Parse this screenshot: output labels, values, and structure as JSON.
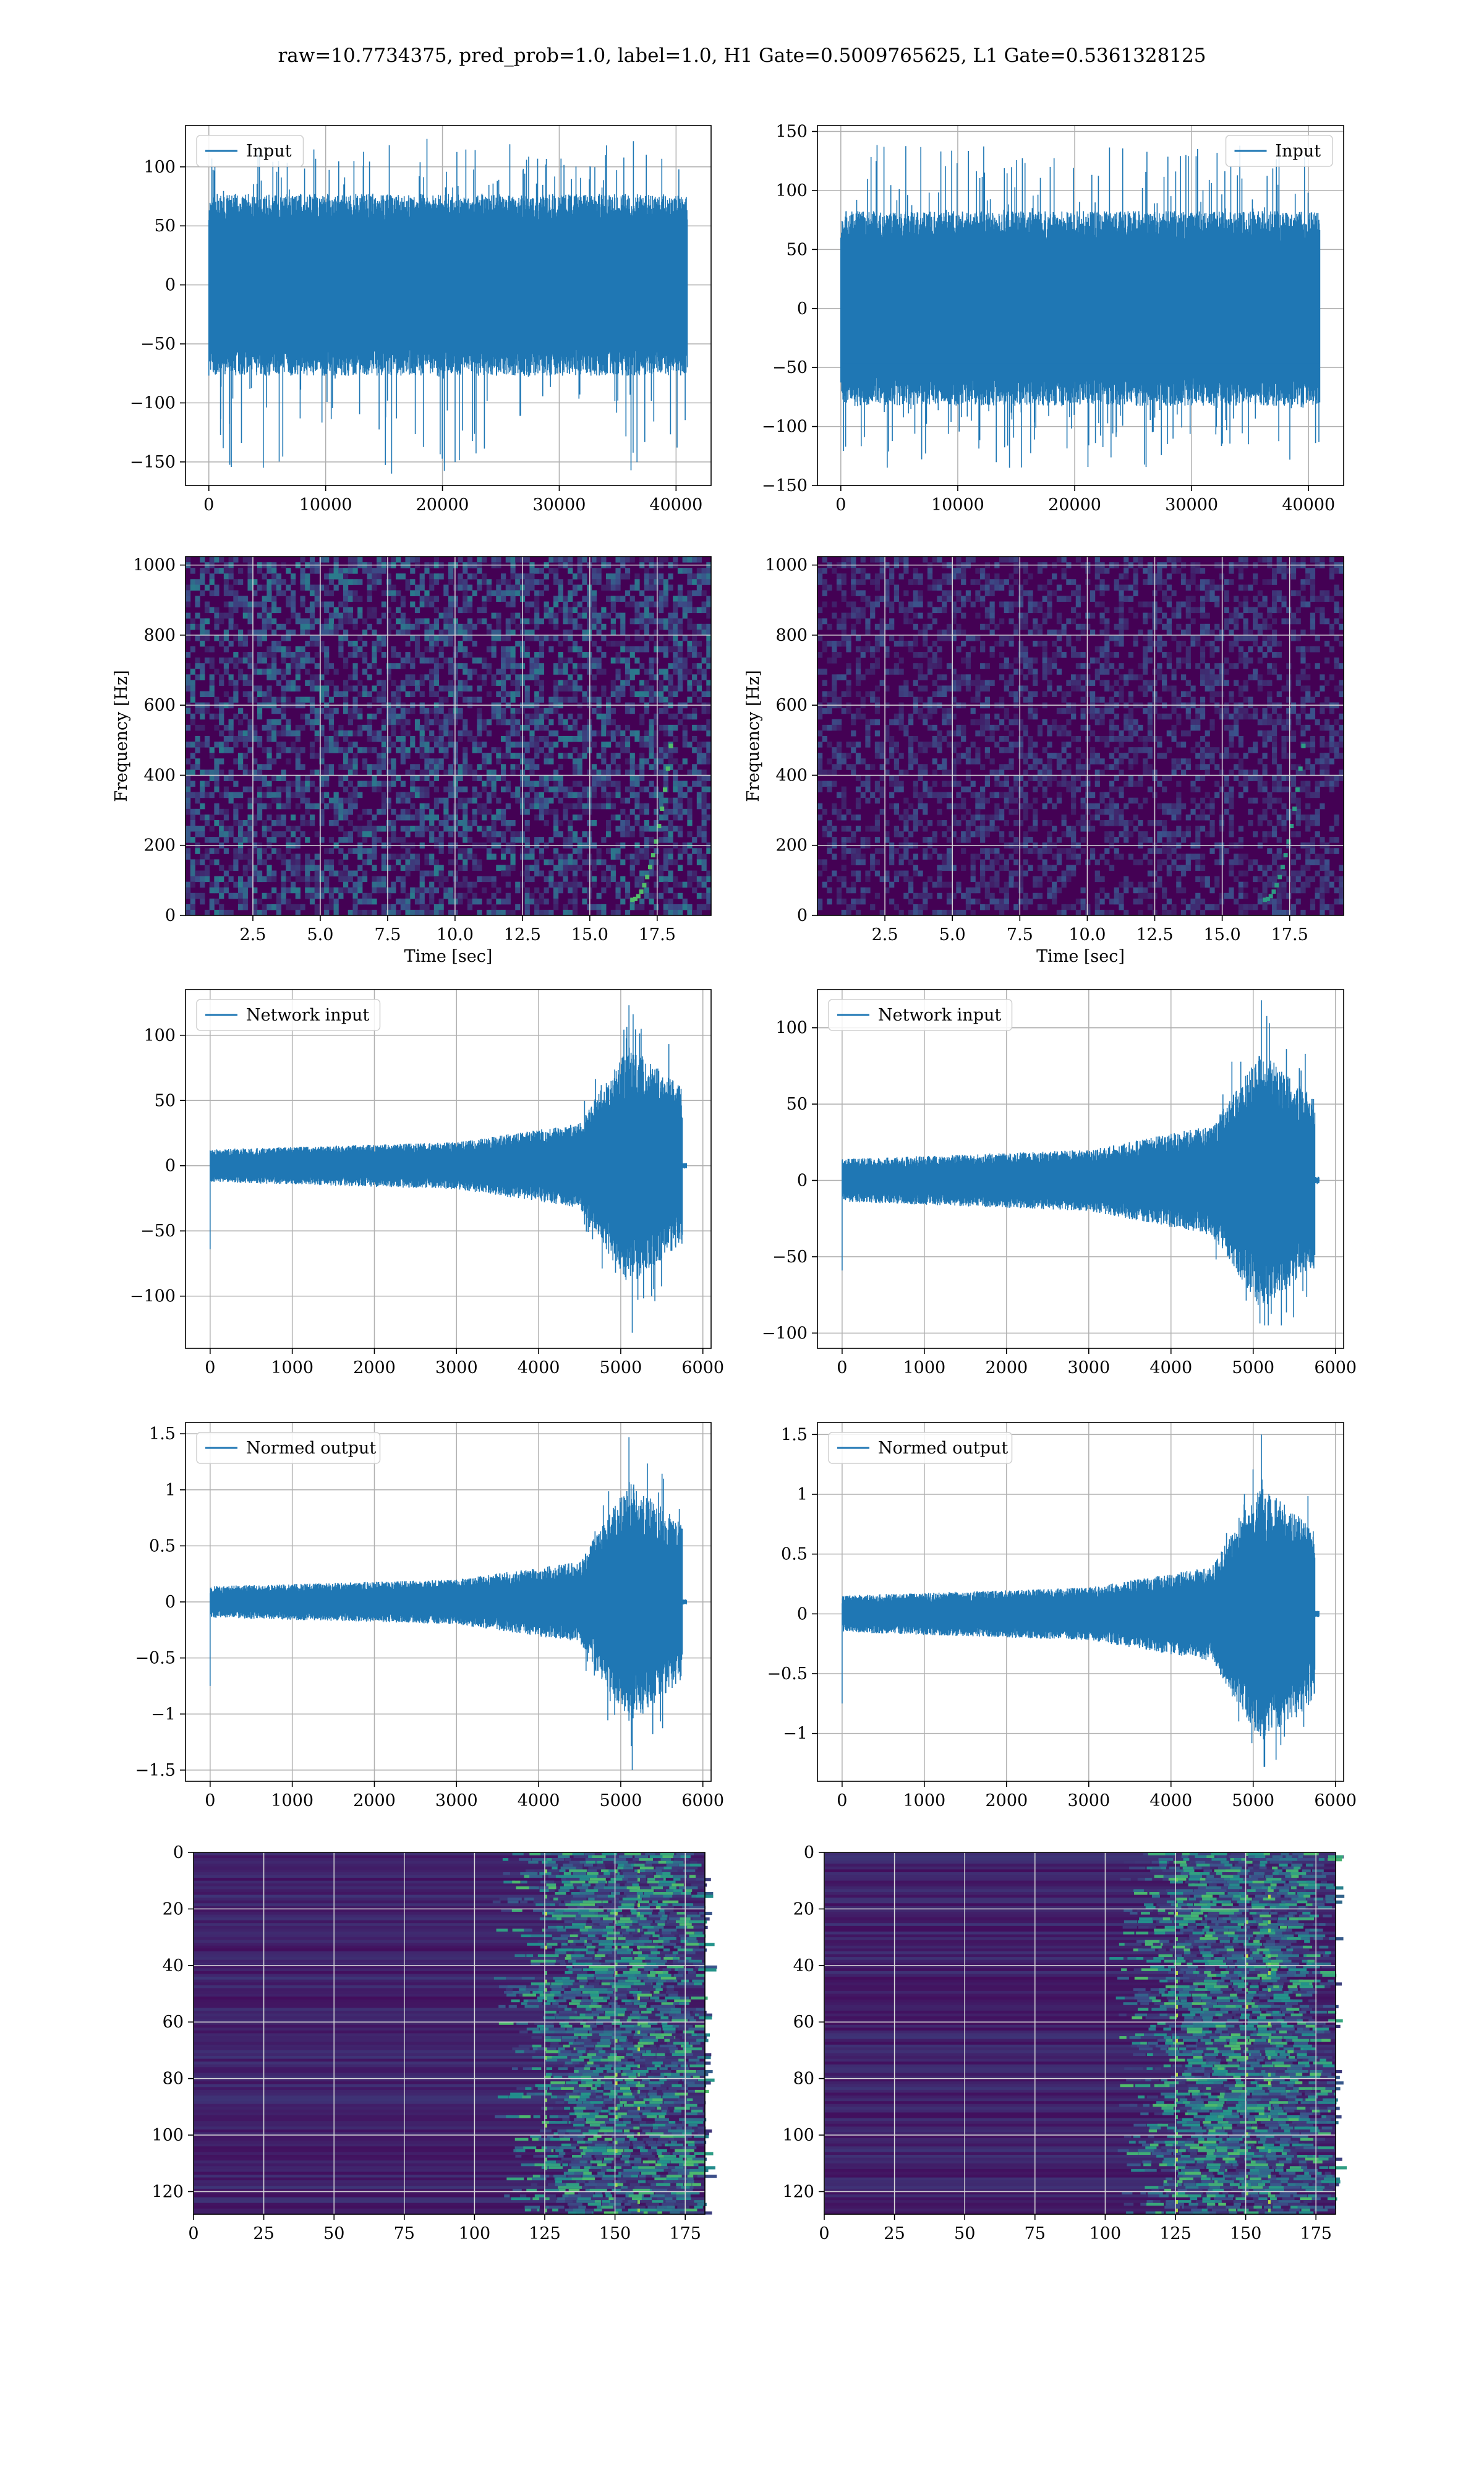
{
  "figure": {
    "suptitle": "raw=10.7734375, pred_prob=1.0, label=1.0, H1 Gate=0.5009765625, L1 Gate=0.5361328125"
  },
  "colors": {
    "line": "#1f77b4",
    "viridis_dark": "#440154",
    "viridis_mid": "#21918c",
    "viridis_bright": "#5ec962",
    "viridis_yellow": "#fde725",
    "grid": "#b0b0b0"
  },
  "chart_data": [
    {
      "id": "input-h1",
      "type": "line",
      "legend": "Input",
      "legend_loc": "upper-left",
      "grid": true,
      "xlim": [
        -2000,
        43000
      ],
      "ylim": [
        -170,
        135
      ],
      "xticks": [
        0,
        10000,
        20000,
        30000,
        40000
      ],
      "yticks": [
        -150,
        -100,
        -50,
        0,
        50,
        100
      ],
      "series": [
        {
          "n": 40960,
          "envelope_abs": 70,
          "spike_max": 125,
          "spike_min": -160
        }
      ]
    },
    {
      "id": "input-l1",
      "type": "line",
      "legend": "Input",
      "legend_loc": "upper-right",
      "grid": true,
      "xlim": [
        -2000,
        43000
      ],
      "ylim": [
        -150,
        155
      ],
      "xticks": [
        0,
        10000,
        20000,
        30000,
        40000
      ],
      "yticks": [
        -150,
        -100,
        -50,
        0,
        50,
        100,
        150
      ],
      "series": [
        {
          "n": 40960,
          "envelope_abs": 75,
          "spike_max": 140,
          "spike_min": -135
        }
      ]
    },
    {
      "id": "spec-h1",
      "type": "heatmap",
      "grid": true,
      "xlabel": "Time [sec]",
      "ylabel": "Frequency [Hz]",
      "xlim": [
        0,
        19.5
      ],
      "ylim": [
        0,
        1024
      ],
      "xticks": [
        "2.5",
        "5.0",
        "7.5",
        "10.0",
        "12.5",
        "15.0",
        "17.5"
      ],
      "yticks": [
        0,
        200,
        400,
        600,
        800,
        1000
      ],
      "intensity": "medium"
    },
    {
      "id": "spec-l1",
      "type": "heatmap",
      "grid": true,
      "xlabel": "Time [sec]",
      "ylabel": "Frequency [Hz]",
      "xlim": [
        0,
        19.5
      ],
      "ylim": [
        0,
        1024
      ],
      "xticks": [
        "2.5",
        "5.0",
        "7.5",
        "10.0",
        "12.5",
        "15.0",
        "17.5"
      ],
      "yticks": [
        0,
        200,
        400,
        600,
        800,
        1000
      ],
      "intensity": "low"
    },
    {
      "id": "net-h1",
      "type": "line",
      "legend": "Network input",
      "legend_loc": "upper-left",
      "grid": true,
      "xlim": [
        -300,
        6100
      ],
      "ylim": [
        -140,
        135
      ],
      "xticks": [
        0,
        1000,
        2000,
        3000,
        4000,
        5000,
        6000
      ],
      "yticks": [
        -100,
        -50,
        0,
        50,
        100
      ],
      "series": [
        {
          "n": 5800,
          "base_amp": 18,
          "burst_start": 4500,
          "burst_peak": 5100,
          "burst_end": 5750,
          "peak_max": 123,
          "peak_min": -128
        }
      ]
    },
    {
      "id": "net-l1",
      "type": "line",
      "legend": "Network input",
      "legend_loc": "upper-left",
      "grid": true,
      "xlim": [
        -300,
        6100
      ],
      "ylim": [
        -110,
        125
      ],
      "xticks": [
        0,
        1000,
        2000,
        3000,
        4000,
        5000,
        6000
      ],
      "yticks": [
        -100,
        -50,
        0,
        50,
        100
      ],
      "series": [
        {
          "n": 5800,
          "base_amp": 20,
          "burst_start": 4500,
          "burst_peak": 5100,
          "burst_end": 5750,
          "peak_max": 118,
          "peak_min": -95
        }
      ]
    },
    {
      "id": "norm-h1",
      "type": "line",
      "legend": "Normed output",
      "legend_loc": "upper-left",
      "grid": true,
      "xlim": [
        -300,
        6100
      ],
      "ylim": [
        -1.6,
        1.6
      ],
      "xticks": [
        0,
        1000,
        2000,
        3000,
        4000,
        5000,
        6000
      ],
      "yticks": [
        -1.5,
        -1.0,
        -0.5,
        0.0,
        0.5,
        1.0,
        1.5
      ],
      "series": [
        {
          "n": 5800,
          "base_amp": 0.2,
          "burst_start": 4500,
          "burst_peak": 5100,
          "burst_end": 5750,
          "peak_max": 1.47,
          "peak_min": -1.5
        }
      ]
    },
    {
      "id": "norm-l1",
      "type": "line",
      "legend": "Normed output",
      "legend_loc": "upper-left",
      "grid": true,
      "xlim": [
        -300,
        6100
      ],
      "ylim": [
        -1.4,
        1.6
      ],
      "xticks": [
        0,
        1000,
        2000,
        3000,
        4000,
        5000,
        6000
      ],
      "yticks": [
        -1.0,
        -0.5,
        0.0,
        0.5,
        1.0,
        1.5
      ],
      "series": [
        {
          "n": 5800,
          "base_amp": 0.22,
          "burst_start": 4500,
          "burst_peak": 5100,
          "burst_end": 5750,
          "peak_max": 1.5,
          "peak_min": -1.28
        }
      ]
    },
    {
      "id": "feat-h1",
      "type": "heatmap",
      "grid": true,
      "xlim": [
        0,
        182
      ],
      "ylim": [
        128,
        0
      ],
      "xticks": [
        0,
        25,
        50,
        75,
        100,
        125,
        150,
        175
      ],
      "yticks": [
        0,
        20,
        40,
        60,
        80,
        100,
        120
      ],
      "active_from": 120
    },
    {
      "id": "feat-l1",
      "type": "heatmap",
      "grid": true,
      "xlim": [
        0,
        182
      ],
      "ylim": [
        128,
        0
      ],
      "xticks": [
        0,
        25,
        50,
        75,
        100,
        125,
        150,
        175
      ],
      "yticks": [
        0,
        20,
        40,
        60,
        80,
        100,
        120
      ],
      "active_from": 115
    }
  ]
}
